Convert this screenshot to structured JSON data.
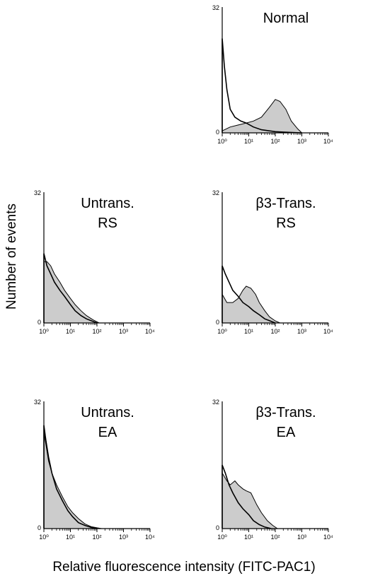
{
  "figure": {
    "ylabel": "Number of events",
    "xlabel": "Relative fluorescence intensity (FITC-PAC1)"
  },
  "chart_data": [
    {
      "type": "area",
      "panel_label": "Normal",
      "x_scale": "log",
      "xlim": [
        1,
        10000
      ],
      "ylim": [
        0,
        32
      ],
      "y_ticks": [
        "0",
        "32"
      ],
      "x_ticks": [
        "10⁰",
        "10¹",
        "10²",
        "10³",
        "10⁴"
      ],
      "series": [
        {
          "style": "outline",
          "x": [
            1,
            1.2,
            1.5,
            2,
            3,
            5,
            8,
            15,
            30,
            60,
            100,
            200,
            400,
            1000
          ],
          "values": [
            24,
            17,
            11,
            6,
            4,
            3,
            2.5,
            1.5,
            0.8,
            0.5,
            0.3,
            0.2,
            0.1,
            0
          ]
        },
        {
          "style": "filled",
          "x": [
            1,
            2,
            4,
            8,
            15,
            30,
            60,
            100,
            150,
            250,
            400,
            700,
            1000
          ],
          "values": [
            0.5,
            1.5,
            2,
            2.5,
            3,
            4,
            6.5,
            8.5,
            8,
            6,
            3,
            1,
            0
          ]
        }
      ]
    },
    {
      "type": "area",
      "panel_label": "Untrans.\nRS",
      "x_scale": "log",
      "xlim": [
        1,
        10000
      ],
      "ylim": [
        0,
        32
      ],
      "y_ticks": [
        "0",
        "32"
      ],
      "x_ticks": [
        "10⁰",
        "10¹",
        "10²",
        "10³",
        "10⁴"
      ],
      "series": [
        {
          "style": "outline",
          "x": [
            1,
            1.3,
            1.8,
            2.5,
            4,
            6,
            10,
            15,
            25,
            40,
            70,
            100
          ],
          "values": [
            17,
            14,
            12,
            10,
            8,
            6.5,
            4.5,
            3,
            1.8,
            1,
            0.4,
            0
          ]
        },
        {
          "style": "filled",
          "x": [
            1,
            1.3,
            1.8,
            2.5,
            4,
            6,
            10,
            15,
            25,
            40,
            70,
            120
          ],
          "values": [
            15,
            15,
            14,
            12,
            10,
            8,
            6,
            4.5,
            3,
            1.8,
            0.8,
            0
          ]
        }
      ]
    },
    {
      "type": "area",
      "panel_label": "β3-Trans.\nRS",
      "x_scale": "log",
      "xlim": [
        1,
        10000
      ],
      "ylim": [
        0,
        32
      ],
      "y_ticks": [
        "0",
        "32"
      ],
      "x_ticks": [
        "10⁰",
        "10¹",
        "10²",
        "10³",
        "10⁴"
      ],
      "series": [
        {
          "style": "outline",
          "x": [
            1,
            1.3,
            1.8,
            2.5,
            4,
            6,
            10,
            15,
            25,
            40,
            70,
            100
          ],
          "values": [
            14,
            12,
            10,
            8,
            6.5,
            5,
            4,
            3,
            2,
            1,
            0.4,
            0
          ]
        },
        {
          "style": "filled",
          "x": [
            1,
            1.5,
            2.5,
            4,
            6,
            8,
            12,
            18,
            25,
            40,
            60,
            100,
            150
          ],
          "values": [
            7,
            5,
            5,
            6,
            8,
            9,
            8.5,
            7,
            5,
            3,
            1.5,
            0.5,
            0
          ]
        }
      ]
    },
    {
      "type": "area",
      "panel_label": "Untrans.\nEA",
      "x_scale": "log",
      "xlim": [
        1,
        10000
      ],
      "ylim": [
        0,
        32
      ],
      "y_ticks": [
        "0",
        "32"
      ],
      "x_ticks": [
        "10⁰",
        "10¹",
        "10²",
        "10³",
        "10⁴"
      ],
      "series": [
        {
          "style": "outline",
          "x": [
            1,
            1.2,
            1.5,
            2,
            3,
            5,
            8,
            12,
            20,
            35,
            60,
            100
          ],
          "values": [
            26,
            22,
            18,
            14,
            10,
            7,
            4.5,
            3,
            1.5,
            0.8,
            0.3,
            0
          ]
        },
        {
          "style": "filled",
          "x": [
            1,
            1.2,
            1.5,
            2,
            3,
            5,
            8,
            12,
            20,
            35,
            60,
            100,
            150
          ],
          "values": [
            24,
            21,
            17,
            14,
            11,
            8,
            5.5,
            4,
            2.5,
            1.2,
            0.5,
            0.2,
            0
          ]
        }
      ]
    },
    {
      "type": "area",
      "panel_label": "β3-Trans.\nEA",
      "x_scale": "log",
      "xlim": [
        1,
        10000
      ],
      "ylim": [
        0,
        32
      ],
      "y_ticks": [
        "0",
        "32"
      ],
      "x_ticks": [
        "10⁰",
        "10¹",
        "10²",
        "10³",
        "10⁴"
      ],
      "series": [
        {
          "style": "outline",
          "x": [
            1,
            1.3,
            1.8,
            2.5,
            4,
            6,
            10,
            15,
            25,
            40,
            70
          ],
          "values": [
            16,
            14,
            11,
            9,
            6.5,
            5,
            3.5,
            2,
            1,
            0.4,
            0
          ]
        },
        {
          "style": "filled",
          "x": [
            1,
            1.5,
            2,
            3,
            4,
            6,
            8,
            12,
            20,
            30,
            50,
            80,
            120
          ],
          "values": [
            14,
            12,
            11,
            12,
            11,
            10,
            9.5,
            9,
            6,
            4,
            2,
            0.8,
            0
          ]
        }
      ]
    }
  ]
}
